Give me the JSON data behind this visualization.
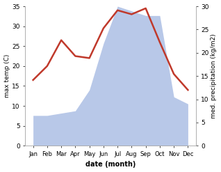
{
  "months": [
    "Jan",
    "Feb",
    "Mar",
    "Apr",
    "May",
    "Jun",
    "Jul",
    "Aug",
    "Sep",
    "Oct",
    "Nov",
    "Dec"
  ],
  "temperature": [
    16.5,
    20.0,
    26.5,
    22.5,
    22.0,
    29.5,
    34.0,
    33.0,
    34.5,
    26.0,
    18.0,
    14.0
  ],
  "precipitation_kg": [
    6.5,
    6.5,
    7.0,
    7.5,
    12.0,
    22.0,
    30.0,
    29.0,
    28.0,
    28.0,
    10.5,
    9.0
  ],
  "temp_color": "#c0392b",
  "precip_fill_color": "#b8c8e8",
  "ylim_temp": [
    0,
    35
  ],
  "ylim_precip": [
    0,
    30
  ],
  "ylabel_left": "max temp (C)",
  "ylabel_right": "med. precipitation (kg/m2)",
  "xlabel": "date (month)",
  "bg_color": "#ffffff",
  "temp_lw": 1.8,
  "yticks_left": [
    0,
    5,
    10,
    15,
    20,
    25,
    30,
    35
  ],
  "yticks_right": [
    0,
    5,
    10,
    15,
    20,
    25,
    30
  ],
  "scale_factor": 1.1667
}
